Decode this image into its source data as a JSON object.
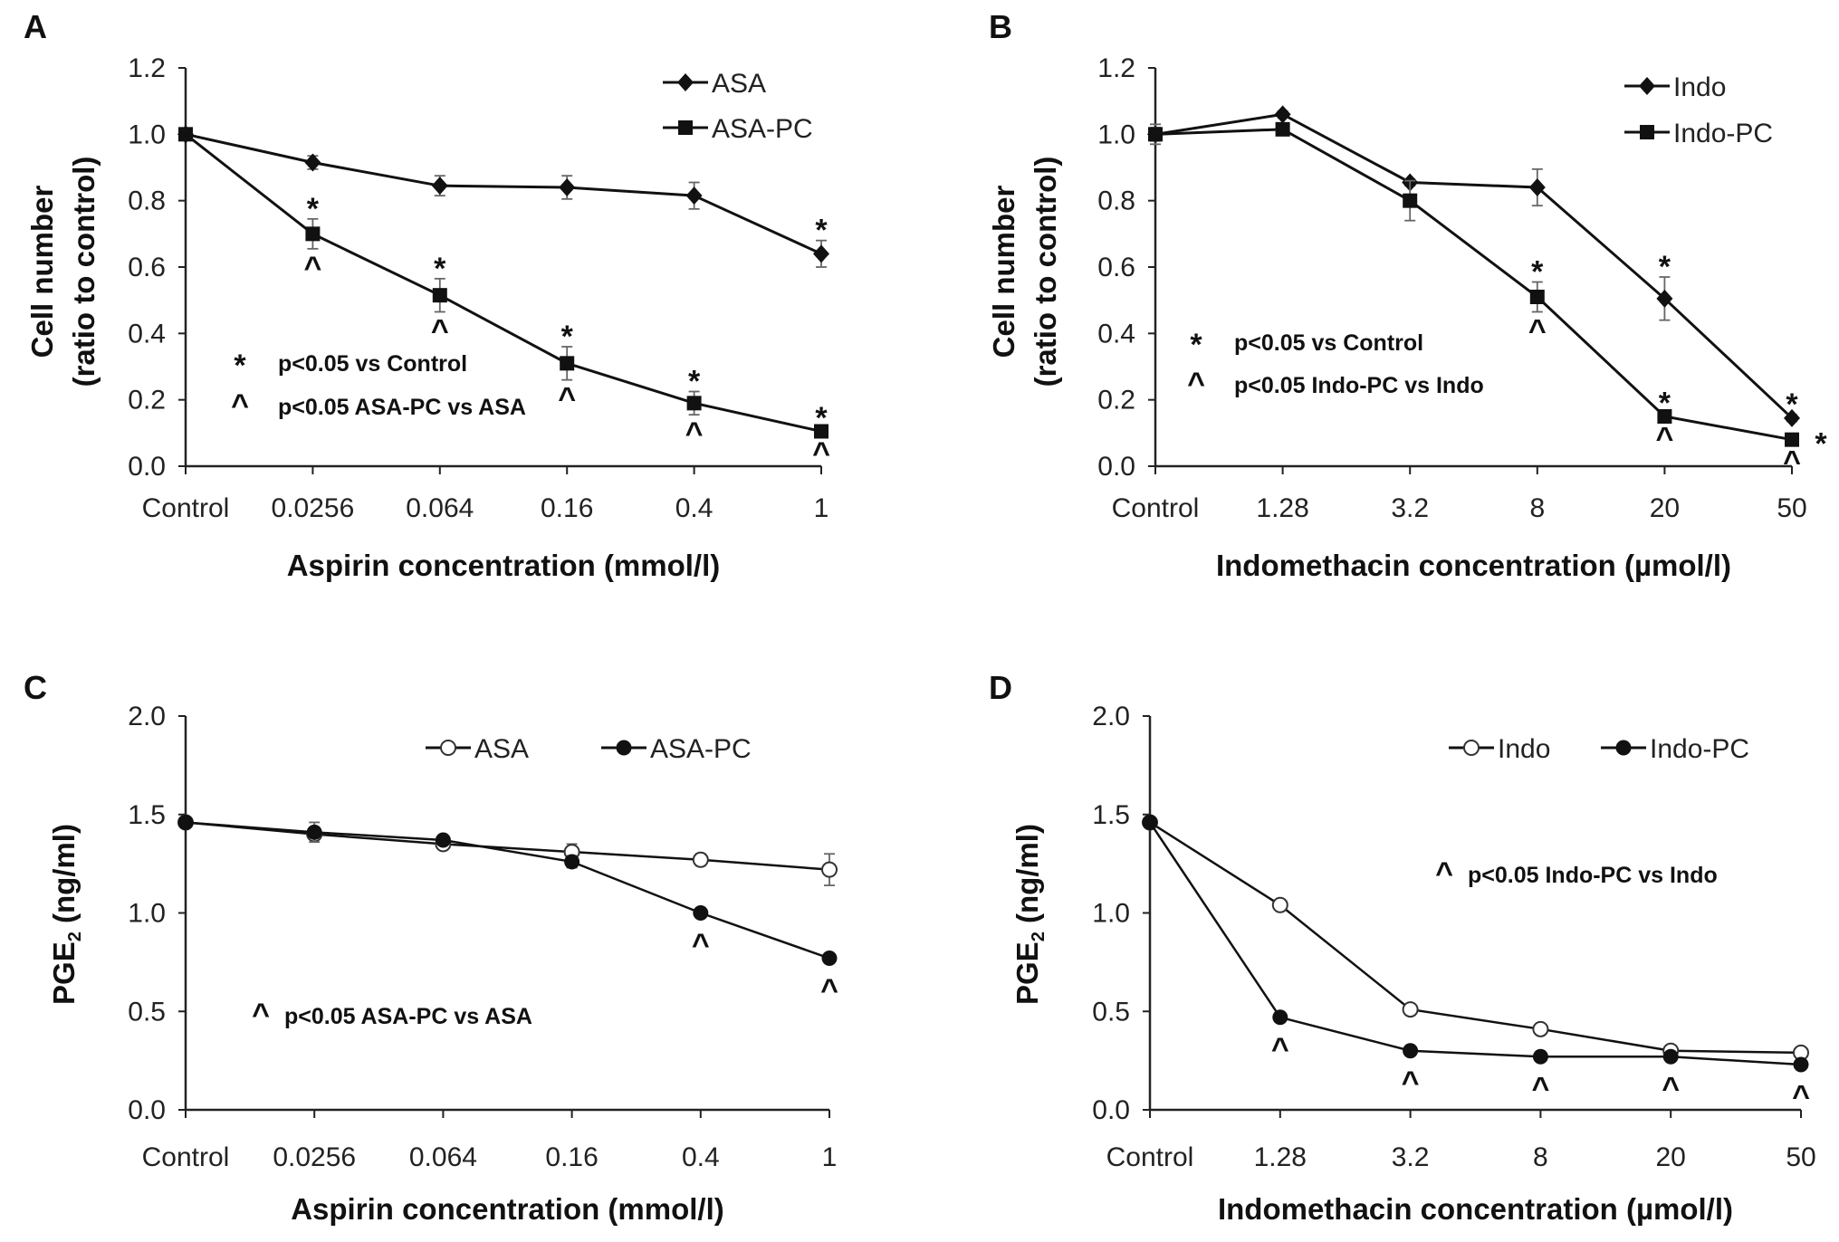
{
  "chart_data": [
    {
      "panel": "A",
      "type": "line",
      "categories": [
        "Control",
        "0.0256",
        "0.064",
        "0.16",
        "0.4",
        "1"
      ],
      "xlabel": "Aspirin concentration (mmol/l)",
      "ylabel": [
        "Cell number",
        "(ratio to control)"
      ],
      "ylim": [
        0,
        1.2
      ],
      "yticks": [
        "0.0",
        "0.2",
        "0.4",
        "0.6",
        "0.8",
        "1.0",
        "1.2"
      ],
      "ytick_values": [
        0,
        0.2,
        0.4,
        0.6,
        0.8,
        1.0,
        1.2
      ],
      "grid": false,
      "legend": {
        "placement": "top-right",
        "orientation": "vertical"
      },
      "series": [
        {
          "name": "ASA",
          "marker": "diamond",
          "values": [
            1.0,
            0.915,
            0.845,
            0.84,
            0.815,
            0.64
          ],
          "errors": [
            0.01,
            0.02,
            0.03,
            0.035,
            0.04,
            0.04
          ]
        },
        {
          "name": "ASA-PC",
          "marker": "square",
          "values": [
            1.0,
            0.7,
            0.515,
            0.31,
            0.19,
            0.105
          ],
          "errors": [
            0.01,
            0.045,
            0.05,
            0.05,
            0.035,
            0.01
          ]
        }
      ],
      "significance": [
        {
          "symbol": "*",
          "series": 0,
          "index": 5,
          "side": "above"
        },
        {
          "symbol": "*",
          "series": 1,
          "index": 1,
          "side": "above"
        },
        {
          "symbol": "*",
          "series": 1,
          "index": 2,
          "side": "above"
        },
        {
          "symbol": "*",
          "series": 1,
          "index": 3,
          "side": "above"
        },
        {
          "symbol": "*",
          "series": 1,
          "index": 4,
          "side": "above"
        },
        {
          "symbol": "*",
          "series": 1,
          "index": 5,
          "side": "above"
        },
        {
          "symbol": "^",
          "series": 1,
          "index": 1,
          "side": "below"
        },
        {
          "symbol": "^",
          "series": 1,
          "index": 2,
          "side": "below"
        },
        {
          "symbol": "^",
          "series": 1,
          "index": 3,
          "side": "below"
        },
        {
          "symbol": "^",
          "series": 1,
          "index": 4,
          "side": "below"
        },
        {
          "symbol": "^",
          "series": 1,
          "index": 5,
          "side": "below"
        }
      ],
      "notes": [
        {
          "symbol": "*",
          "text": "p<0.05 vs Control"
        },
        {
          "symbol": "^",
          "text": "p<0.05 ASA-PC vs ASA"
        }
      ]
    },
    {
      "panel": "B",
      "type": "line",
      "categories": [
        "Control",
        "1.28",
        "3.2",
        "8",
        "20",
        "50"
      ],
      "xlabel": "Indomethacin concentration (µmol/l)",
      "ylabel": [
        "Cell number",
        "(ratio to control)"
      ],
      "ylim": [
        0,
        1.2
      ],
      "yticks": [
        "0.0",
        "0.2",
        "0.4",
        "0.6",
        "0.8",
        "1.0",
        "1.2"
      ],
      "ytick_values": [
        0,
        0.2,
        0.4,
        0.6,
        0.8,
        1.0,
        1.2
      ],
      "grid": false,
      "legend": {
        "placement": "top-right",
        "orientation": "vertical"
      },
      "series": [
        {
          "name": "Indo",
          "marker": "diamond",
          "values": [
            1.0,
            1.06,
            0.855,
            0.84,
            0.505,
            0.145
          ],
          "errors": [
            0.03,
            0.01,
            0.01,
            0.055,
            0.065,
            0.01
          ]
        },
        {
          "name": "Indo-PC",
          "marker": "square",
          "values": [
            1.0,
            1.015,
            0.8,
            0.51,
            0.15,
            0.08
          ],
          "errors": [
            0.02,
            0.01,
            0.06,
            0.045,
            0.01,
            0.01
          ]
        }
      ],
      "significance": [
        {
          "symbol": "*",
          "series": 1,
          "index": 3,
          "side": "above"
        },
        {
          "symbol": "*",
          "series": 0,
          "index": 4,
          "side": "above"
        },
        {
          "symbol": "*",
          "series": 1,
          "index": 4,
          "side": "above"
        },
        {
          "symbol": "*",
          "series": 0,
          "index": 5,
          "side": "above"
        },
        {
          "symbol": "*",
          "series": 1,
          "index": 5,
          "side": "right"
        },
        {
          "symbol": "^",
          "series": 1,
          "index": 3,
          "side": "below"
        },
        {
          "symbol": "^",
          "series": 1,
          "index": 4,
          "side": "below"
        },
        {
          "symbol": "^",
          "series": 1,
          "index": 5,
          "side": "below"
        }
      ],
      "notes": [
        {
          "symbol": "*",
          "text": "p<0.05 vs Control"
        },
        {
          "symbol": "^",
          "text": "p<0.05 Indo-PC vs Indo"
        }
      ]
    },
    {
      "panel": "C",
      "type": "line",
      "categories": [
        "Control",
        "0.0256",
        "0.064",
        "0.16",
        "0.4",
        "1"
      ],
      "xlabel": "Aspirin concentration (mmol/l)",
      "ylabel": [
        "PGE2 (ng/ml)"
      ],
      "ylim": [
        0,
        2.0
      ],
      "yticks": [
        "0.0",
        "0.5",
        "1.0",
        "1.5",
        "2.0"
      ],
      "ytick_values": [
        0,
        0.5,
        1.0,
        1.5,
        2.0
      ],
      "grid": false,
      "legend": {
        "placement": "top-right",
        "orientation": "horizontal"
      },
      "series": [
        {
          "name": "ASA",
          "marker": "open-circle",
          "values": [
            1.46,
            1.4,
            1.35,
            1.31,
            1.27,
            1.22
          ],
          "errors": [
            0.02,
            0.02,
            0.02,
            0.04,
            0.03,
            0.08
          ]
        },
        {
          "name": "ASA-PC",
          "marker": "filled-circle",
          "values": [
            1.46,
            1.41,
            1.37,
            1.26,
            1.0,
            0.77
          ],
          "errors": [
            0.02,
            0.05,
            0.02,
            0.03,
            0.02,
            0.02
          ]
        }
      ],
      "significance": [
        {
          "symbol": "^",
          "series": 1,
          "index": 4,
          "side": "below"
        },
        {
          "symbol": "^",
          "series": 1,
          "index": 5,
          "side": "below"
        }
      ],
      "notes": [
        {
          "symbol": "^",
          "text": "p<0.05 ASA-PC vs ASA"
        }
      ]
    },
    {
      "panel": "D",
      "type": "line",
      "categories": [
        "Control",
        "1.28",
        "3.2",
        "8",
        "20",
        "50"
      ],
      "xlabel": "Indomethacin concentration (µmol/l)",
      "ylabel": [
        "PGE2 (ng/ml)"
      ],
      "ylim": [
        0,
        2.0
      ],
      "yticks": [
        "0.0",
        "0.5",
        "1.0",
        "1.5",
        "2.0"
      ],
      "ytick_values": [
        0,
        0.5,
        1.0,
        1.5,
        2.0
      ],
      "grid": false,
      "legend": {
        "placement": "top-right",
        "orientation": "horizontal"
      },
      "series": [
        {
          "name": "Indo",
          "marker": "open-circle",
          "values": [
            1.46,
            1.04,
            0.51,
            0.41,
            0.3,
            0.29
          ],
          "errors": [
            0.02,
            0.02,
            0.02,
            0.02,
            0.02,
            0.02
          ]
        },
        {
          "name": "Indo-PC",
          "marker": "filled-circle",
          "values": [
            1.46,
            0.47,
            0.3,
            0.27,
            0.27,
            0.23
          ],
          "errors": [
            0.02,
            0.02,
            0.02,
            0.02,
            0.02,
            0.02
          ]
        }
      ],
      "significance": [
        {
          "symbol": "^",
          "series": 1,
          "index": 1,
          "side": "below"
        },
        {
          "symbol": "^",
          "series": 1,
          "index": 2,
          "side": "below"
        },
        {
          "symbol": "^",
          "series": 1,
          "index": 3,
          "side": "below"
        },
        {
          "symbol": "^",
          "series": 1,
          "index": 4,
          "side": "below"
        },
        {
          "symbol": "^",
          "series": 1,
          "index": 5,
          "side": "below"
        }
      ],
      "notes": [
        {
          "symbol": "^",
          "text": "p<0.05 Indo-PC vs Indo"
        }
      ]
    }
  ]
}
